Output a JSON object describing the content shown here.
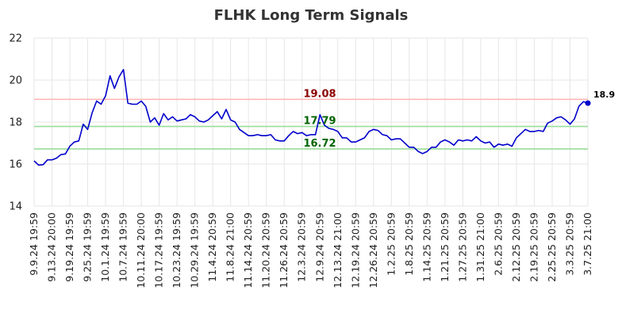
{
  "chart_data": {
    "type": "line",
    "title": "FLHK Long Term Signals",
    "xlabel": "",
    "ylabel": "",
    "ylim": [
      14,
      22
    ],
    "yticks": [
      14,
      16,
      18,
      20,
      22
    ],
    "grid": true,
    "xtick_labels": [
      "9.9.24 19:59",
      "9.13.24 20:00",
      "9.19.24 19:59",
      "9.25.24 19:59",
      "10.1.24 19:59",
      "10.7.24 19:59",
      "10.11.24 20:00",
      "10.17.24 19:59",
      "10.23.24 19:59",
      "10.29.24 19:59",
      "11.4.24 20:59",
      "11.8.24 21:00",
      "11.14.24 20:59",
      "11.20.24 20:59",
      "11.26.24 20:59",
      "12.3.24 20:59",
      "12.9.24 20:59",
      "12.13.24 21:00",
      "12.19.24 20:59",
      "12.26.24 20:59",
      "1.2.25 20:59",
      "1.8.25 20:59",
      "1.14.25 20:59",
      "1.21.25 20:59",
      "1.27.25 20:59",
      "1.31.25 21:00",
      "2.6.25 20:59",
      "2.12.25 20:59",
      "2.19.25 20:59",
      "2.25.25 20:59",
      "3.3.25 20:59",
      "3.7.25 21:00"
    ],
    "series": [
      {
        "color": "#0000cc",
        "values": [
          16.15,
          15.95,
          15.97,
          16.2,
          16.2,
          16.28,
          16.45,
          16.48,
          16.85,
          17.05,
          17.1,
          17.9,
          17.65,
          18.45,
          19.0,
          18.85,
          19.25,
          20.2,
          19.6,
          20.15,
          20.5,
          18.9,
          18.85,
          18.85,
          19.0,
          18.75,
          18.0,
          18.2,
          17.85,
          18.4,
          18.1,
          18.25,
          18.05,
          18.1,
          18.15,
          18.35,
          18.25,
          18.05,
          18.0,
          18.1,
          18.3,
          18.5,
          18.15,
          18.6,
          18.1,
          18.0,
          17.65,
          17.5,
          17.35,
          17.35,
          17.4,
          17.35,
          17.35,
          17.4,
          17.15,
          17.1,
          17.1,
          17.35,
          17.55,
          17.45,
          17.5,
          17.35,
          17.4,
          17.4,
          18.35,
          17.85,
          17.7,
          17.65,
          17.55,
          17.25,
          17.25,
          17.05,
          17.05,
          17.15,
          17.25,
          17.55,
          17.65,
          17.6,
          17.4,
          17.35,
          17.15,
          17.2,
          17.2,
          17.0,
          16.8,
          16.8,
          16.6,
          16.5,
          16.6,
          16.8,
          16.8,
          17.05,
          17.15,
          17.05,
          16.9,
          17.15,
          17.1,
          17.15,
          17.1,
          17.3,
          17.1,
          17.0,
          17.05,
          16.8,
          16.95,
          16.9,
          16.95,
          16.85,
          17.25,
          17.45,
          17.65,
          17.55,
          17.55,
          17.6,
          17.55,
          17.95,
          18.05,
          18.2,
          18.25,
          18.1,
          17.9,
          18.15,
          18.75,
          18.97,
          18.9
        ]
      }
    ],
    "levels": [
      {
        "value": 19.08,
        "label": "19.08",
        "line_color": "#ffb3b3",
        "text_color": "#8b0000"
      },
      {
        "value": 17.79,
        "label": "17.79",
        "line_color": "#99dd99",
        "text_color": "#006400"
      },
      {
        "value": 16.72,
        "label": "16.72",
        "line_color": "#99dd99",
        "text_color": "#006400"
      }
    ],
    "last_value_label": "18.9",
    "last_point_color": "#0000cc"
  }
}
